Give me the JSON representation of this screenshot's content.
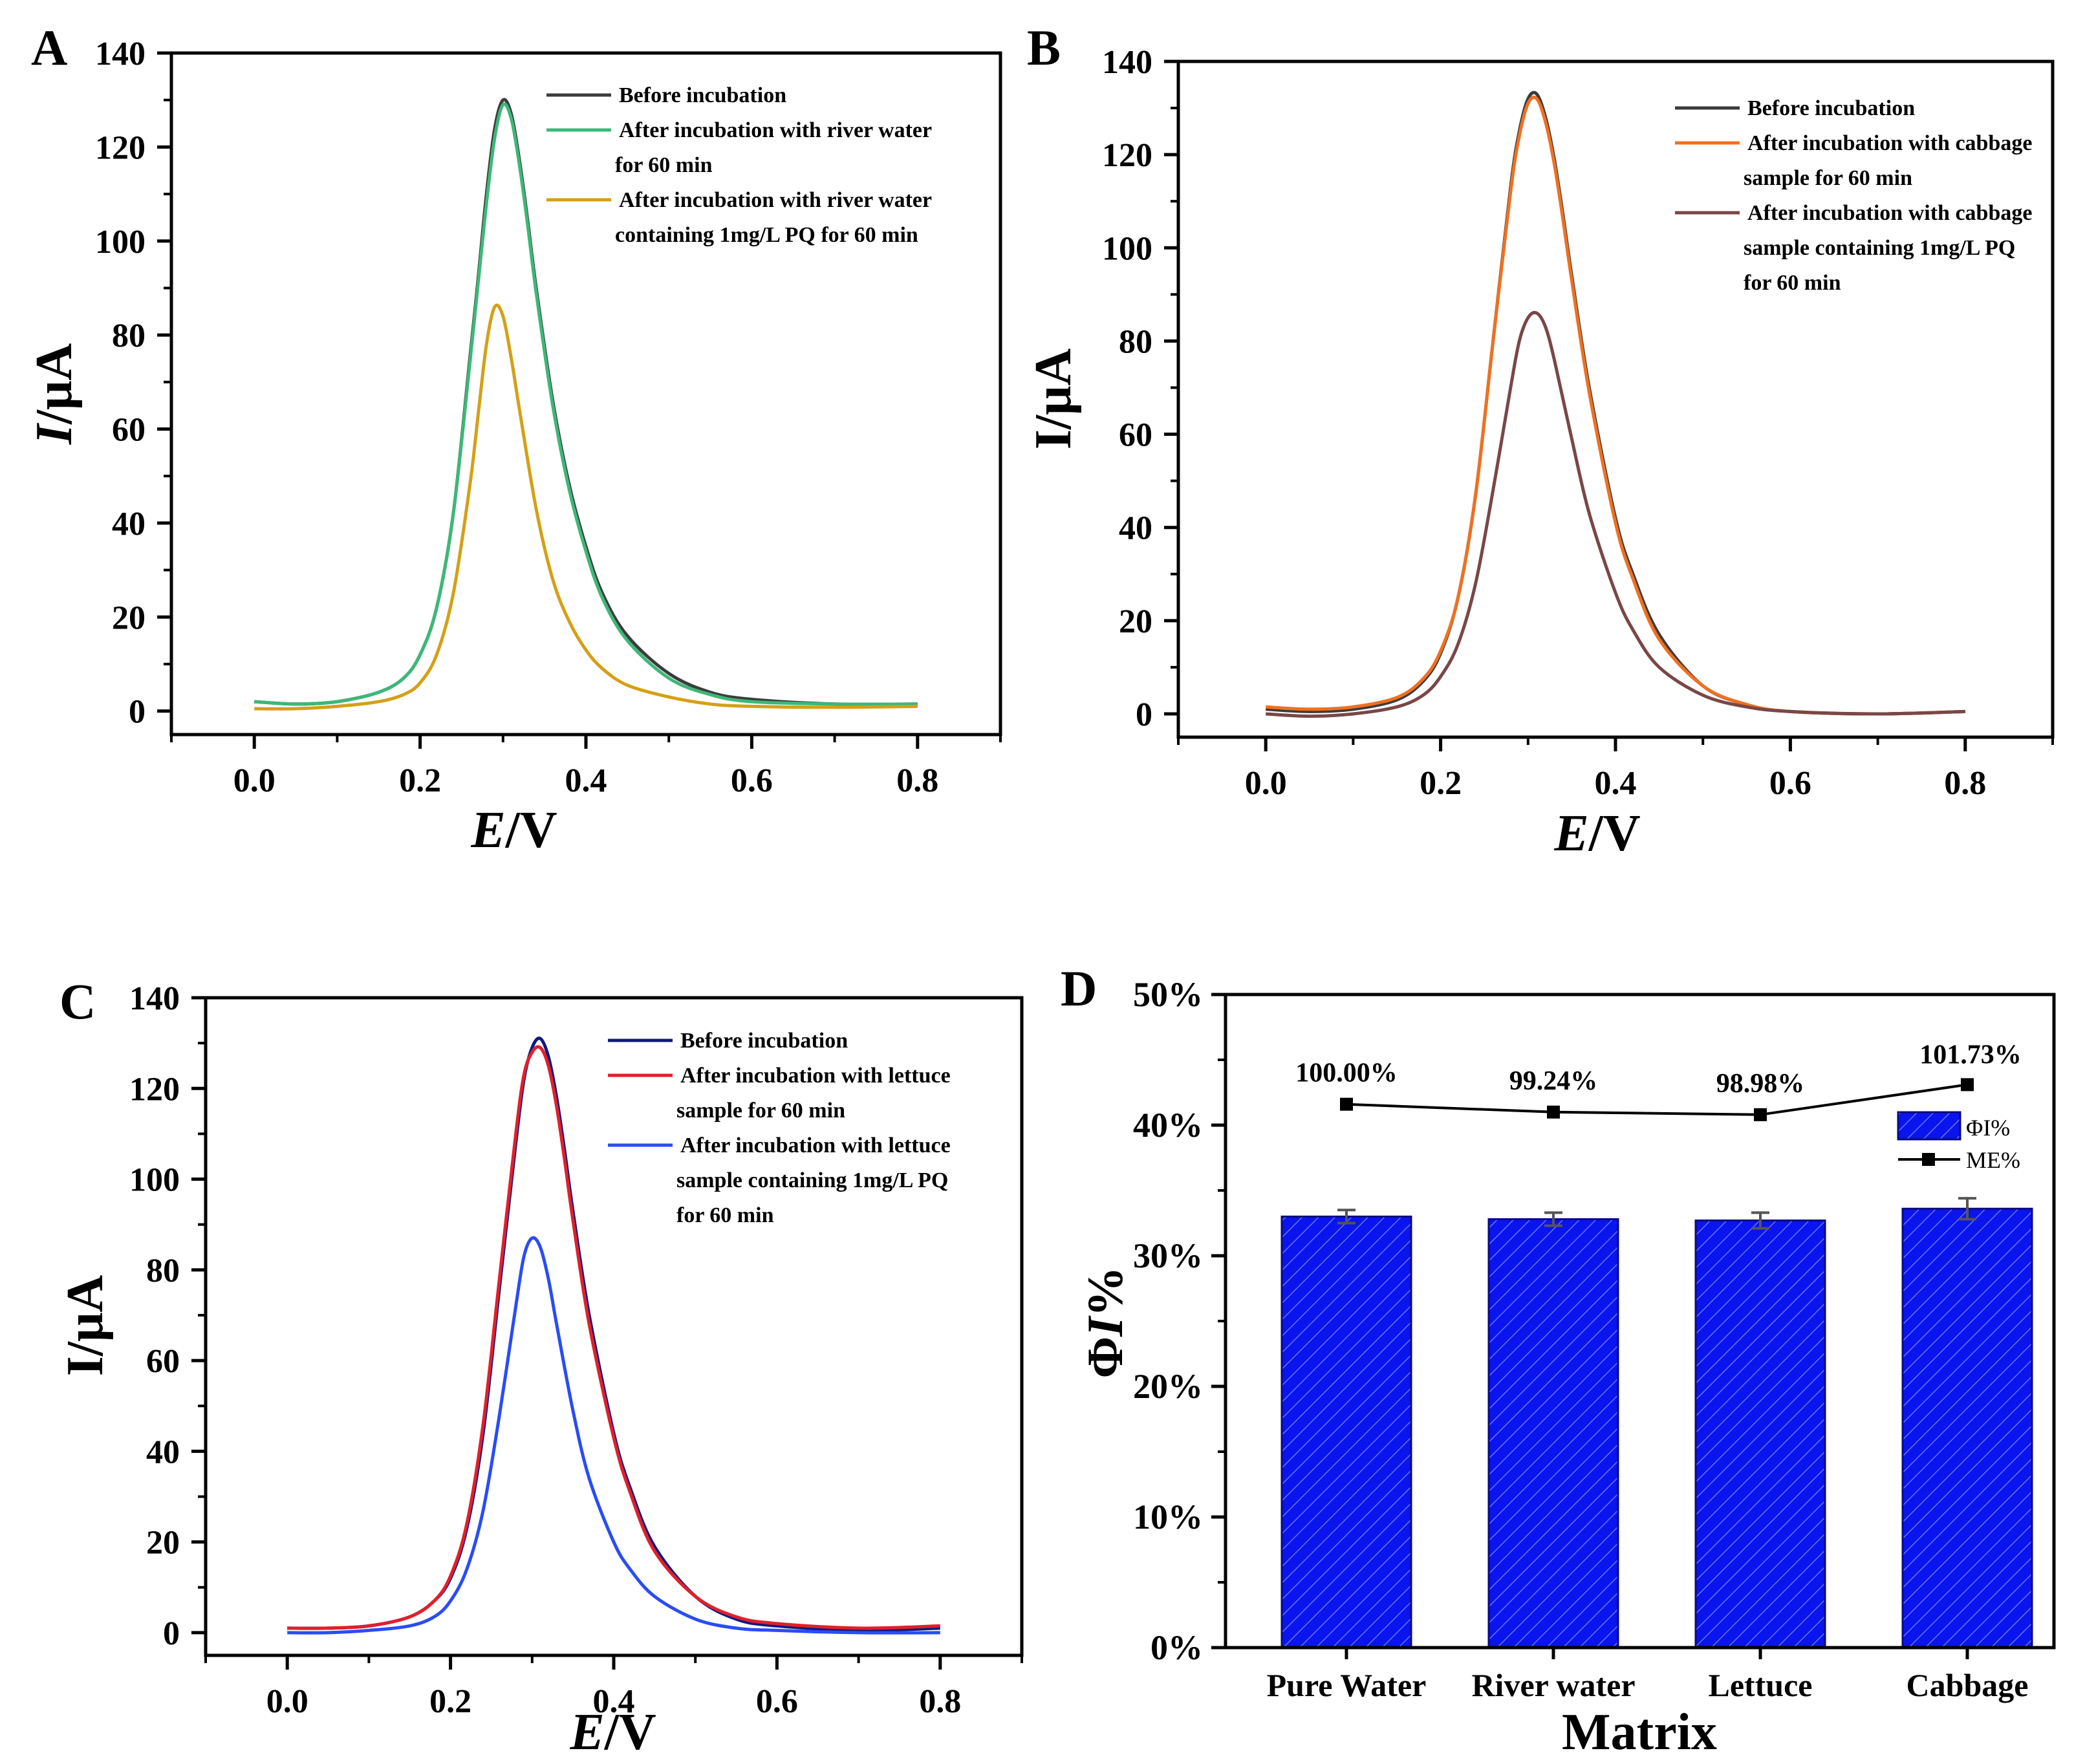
{
  "colors": {
    "axis": "#000000",
    "bar_fill": "#0a14ee",
    "bar_hatch": "#6a72ff",
    "errorbar": "#555555"
  },
  "chart_data": [
    {
      "panel": "A",
      "type": "line",
      "xlabel_italic": "E",
      "xlabel_unit": "/V",
      "ylabel_italic": "I",
      "ylabel_unit": "/μA",
      "xlim": [
        -0.1,
        0.9
      ],
      "ylim": [
        -5,
        140
      ],
      "xticks": [
        0.0,
        0.2,
        0.4,
        0.6,
        0.8
      ],
      "xticklabels": [
        "0.0",
        "0.2",
        "0.4",
        "0.6",
        "0.8"
      ],
      "yticks": [
        0,
        20,
        40,
        60,
        80,
        100,
        120,
        140
      ],
      "yticklabels": [
        "0",
        "20",
        "40",
        "60",
        "80",
        "100",
        "120",
        "140"
      ],
      "legend_position": "top-right",
      "series": [
        {
          "name": "Before incubation",
          "legend_lines": [
            "Before incubation"
          ],
          "color": "#3c3c3c",
          "x": [
            0.0,
            0.05,
            0.1,
            0.15,
            0.18,
            0.2,
            0.22,
            0.24,
            0.26,
            0.27,
            0.28,
            0.29,
            0.3,
            0.31,
            0.32,
            0.33,
            0.34,
            0.36,
            0.38,
            0.4,
            0.42,
            0.45,
            0.5,
            0.55,
            0.6,
            0.7,
            0.8
          ],
          "y": [
            2,
            1.5,
            2,
            4,
            7,
            12,
            22,
            42,
            75,
            92,
            110,
            124,
            130,
            127,
            117,
            104,
            90,
            66,
            48,
            35,
            25,
            16,
            8,
            4,
            2.5,
            1.5,
            1.5
          ]
        },
        {
          "name": "After incubation with river water for 60 min",
          "legend_lines": [
            "After incubation with river water",
            "for 60 min"
          ],
          "color": "#3cb878",
          "x": [
            0.0,
            0.05,
            0.1,
            0.15,
            0.18,
            0.2,
            0.22,
            0.24,
            0.26,
            0.27,
            0.28,
            0.29,
            0.3,
            0.31,
            0.32,
            0.33,
            0.34,
            0.36,
            0.38,
            0.4,
            0.42,
            0.45,
            0.5,
            0.55,
            0.6,
            0.7,
            0.8
          ],
          "y": [
            2,
            1.5,
            2,
            4,
            7,
            12,
            22,
            42,
            74,
            91,
            108,
            122,
            129,
            126,
            116,
            103,
            89,
            65,
            47,
            34,
            24,
            15,
            7,
            3.5,
            2,
            1.5,
            1.5
          ]
        },
        {
          "name": "After incubation with river water containing 1mg/L PQ for 60 min",
          "legend_lines": [
            "After incubation with river water",
            "containing 1mg/L PQ for 60 min"
          ],
          "color": "#d4a017",
          "x": [
            0.0,
            0.05,
            0.1,
            0.15,
            0.18,
            0.2,
            0.22,
            0.24,
            0.26,
            0.27,
            0.28,
            0.29,
            0.3,
            0.31,
            0.32,
            0.34,
            0.36,
            0.38,
            0.4,
            0.42,
            0.45,
            0.5,
            0.55,
            0.6,
            0.7,
            0.8
          ],
          "y": [
            0.5,
            0.5,
            1,
            2,
            3.5,
            6,
            12,
            25,
            48,
            63,
            78,
            86,
            84,
            75,
            64,
            43,
            28,
            19,
            13,
            9,
            5.5,
            3,
            1.5,
            1,
            0.8,
            1
          ]
        }
      ]
    },
    {
      "panel": "B",
      "type": "line",
      "xlabel_italic": "E",
      "xlabel_unit": "/V",
      "ylabel_italic": "",
      "ylabel_unit": "I/μA",
      "xlim": [
        -0.1,
        0.9
      ],
      "ylim": [
        -5,
        140
      ],
      "xticks": [
        0.0,
        0.2,
        0.4,
        0.6,
        0.8
      ],
      "xticklabels": [
        "0.0",
        "0.2",
        "0.4",
        "0.6",
        "0.8"
      ],
      "yticks": [
        0,
        20,
        40,
        60,
        80,
        100,
        120,
        140
      ],
      "yticklabels": [
        "0",
        "20",
        "40",
        "60",
        "80",
        "100",
        "120",
        "140"
      ],
      "legend_position": "top-right",
      "series": [
        {
          "name": "Before incubation",
          "legend_lines": [
            "Before incubation"
          ],
          "color": "#3c3c3c",
          "x": [
            0.0,
            0.05,
            0.1,
            0.15,
            0.18,
            0.2,
            0.22,
            0.24,
            0.26,
            0.28,
            0.29,
            0.3,
            0.31,
            0.32,
            0.33,
            0.34,
            0.35,
            0.37,
            0.4,
            0.42,
            0.45,
            0.5,
            0.55,
            0.6,
            0.7,
            0.8
          ],
          "y": [
            1,
            0.5,
            1,
            3,
            7,
            13,
            25,
            47,
            80,
            113,
            125,
            132,
            133,
            128,
            119,
            107,
            94,
            70,
            42,
            30,
            17,
            6,
            2,
            0.5,
            0,
            0.5
          ]
        },
        {
          "name": "After incubation with cabbage sample for 60 min",
          "legend_lines": [
            "After incubation with cabbage",
            "sample for 60 min"
          ],
          "color": "#f07020",
          "x": [
            0.0,
            0.05,
            0.1,
            0.15,
            0.18,
            0.2,
            0.22,
            0.24,
            0.26,
            0.28,
            0.29,
            0.3,
            0.31,
            0.32,
            0.33,
            0.34,
            0.35,
            0.37,
            0.4,
            0.42,
            0.45,
            0.5,
            0.55,
            0.6,
            0.7,
            0.8
          ],
          "y": [
            1.5,
            1,
            1.5,
            3.5,
            7.5,
            13.5,
            25,
            47,
            80,
            112,
            124,
            131,
            132,
            127,
            118,
            106,
            93,
            69,
            41,
            29,
            16,
            6,
            2,
            0.5,
            0,
            0.5
          ]
        },
        {
          "name": "After incubation with cabbage sample containing 1mg/L PQ for 60 min",
          "legend_lines": [
            "After incubation with cabbage",
            "sample containing 1mg/L PQ",
            "for 60 min"
          ],
          "color": "#7a4646",
          "x": [
            0.0,
            0.05,
            0.1,
            0.15,
            0.18,
            0.2,
            0.22,
            0.24,
            0.26,
            0.28,
            0.29,
            0.3,
            0.31,
            0.32,
            0.33,
            0.35,
            0.37,
            0.4,
            0.42,
            0.45,
            0.5,
            0.55,
            0.6,
            0.7,
            0.8
          ],
          "y": [
            0,
            -0.5,
            0,
            1.5,
            4,
            8,
            15,
            28,
            48,
            70,
            80,
            85,
            86,
            83,
            76,
            59,
            43,
            26,
            18,
            10,
            4,
            1.5,
            0.5,
            0,
            0.5
          ]
        }
      ]
    },
    {
      "panel": "C",
      "type": "line",
      "xlabel_italic": "E",
      "xlabel_unit": "/V",
      "ylabel_italic": "",
      "ylabel_unit": "I/μA",
      "xlim": [
        -0.1,
        0.9
      ],
      "ylim": [
        -5,
        140
      ],
      "xticks": [
        0.0,
        0.2,
        0.4,
        0.6,
        0.8
      ],
      "xticklabels": [
        "0.0",
        "0.2",
        "0.4",
        "0.6",
        "0.8"
      ],
      "yticks": [
        0,
        20,
        40,
        60,
        80,
        100,
        120,
        140
      ],
      "yticklabels": [
        "0",
        "20",
        "40",
        "60",
        "80",
        "100",
        "120",
        "140"
      ],
      "legend_position": "top-right",
      "series": [
        {
          "name": "Before incubation",
          "legend_lines": [
            "Before incubation"
          ],
          "color": "#101880",
          "x": [
            0.0,
            0.05,
            0.1,
            0.15,
            0.18,
            0.2,
            0.22,
            0.24,
            0.26,
            0.28,
            0.29,
            0.3,
            0.31,
            0.32,
            0.33,
            0.34,
            0.35,
            0.37,
            0.4,
            0.42,
            0.45,
            0.5,
            0.55,
            0.6,
            0.7,
            0.8
          ],
          "y": [
            1,
            1,
            1.5,
            3.5,
            7,
            12,
            23,
            44,
            76,
            108,
            122,
            129,
            131,
            127,
            118,
            106,
            93,
            70,
            44,
            32,
            19,
            8,
            3,
            1.5,
            0.5,
            1
          ]
        },
        {
          "name": "After incubation with lettuce sample for 60 min",
          "legend_lines": [
            "After incubation with lettuce",
            "sample for 60 min"
          ],
          "color": "#e0202a",
          "x": [
            0.0,
            0.05,
            0.1,
            0.15,
            0.18,
            0.2,
            0.22,
            0.24,
            0.26,
            0.28,
            0.29,
            0.3,
            0.31,
            0.32,
            0.33,
            0.34,
            0.35,
            0.37,
            0.4,
            0.42,
            0.45,
            0.5,
            0.55,
            0.6,
            0.7,
            0.8
          ],
          "y": [
            1,
            1,
            1.5,
            3.5,
            7,
            12.5,
            24,
            46,
            78,
            110,
            123,
            128,
            129,
            125,
            116,
            104,
            91,
            68,
            43,
            31,
            18,
            8,
            3.5,
            2,
            1,
            1.5
          ]
        },
        {
          "name": "After incubation with lettuce sample containing 1mg/L PQ for 60 min",
          "legend_lines": [
            "After incubation with lettuce",
            "sample containing 1mg/L PQ",
            "for 60 min"
          ],
          "color": "#2a4cf5",
          "x": [
            0.0,
            0.05,
            0.1,
            0.15,
            0.18,
            0.2,
            0.22,
            0.24,
            0.26,
            0.28,
            0.29,
            0.3,
            0.31,
            0.32,
            0.33,
            0.35,
            0.37,
            0.4,
            0.42,
            0.45,
            0.5,
            0.55,
            0.6,
            0.7,
            0.8
          ],
          "y": [
            0,
            0,
            0.5,
            1.5,
            3.5,
            7,
            14,
            27,
            48,
            72,
            83,
            87,
            85,
            78,
            68,
            49,
            34,
            20,
            14,
            8,
            3,
            1,
            0.5,
            0,
            0
          ]
        }
      ]
    },
    {
      "panel": "D",
      "type": "bar",
      "xlabel": "Matrix",
      "ylabel_greek": "Φ",
      "ylabel_italic": "I",
      "ylabel_unit": "%",
      "categories": [
        "Pure Water",
        "River water",
        "Lettuce",
        "Cabbage"
      ],
      "values": [
        33.0,
        32.8,
        32.7,
        33.6
      ],
      "errors": [
        0.5,
        0.5,
        0.6,
        0.8
      ],
      "ylim": [
        0,
        50
      ],
      "yticks": [
        0,
        10,
        20,
        30,
        40,
        50
      ],
      "yticklabels": [
        "0%",
        "10%",
        "20%",
        "30%",
        "40%",
        "50%"
      ],
      "legend_position": "right",
      "legend": [
        "ΦI%",
        "ME%"
      ],
      "line_series": {
        "name": "ME%",
        "values": [
          41.6,
          41.0,
          40.8,
          43.1
        ],
        "labels": [
          "100.00%",
          "99.24%",
          "98.98%",
          "101.73%"
        ]
      }
    }
  ],
  "panel_letters": [
    "A",
    "B",
    "C",
    "D"
  ]
}
